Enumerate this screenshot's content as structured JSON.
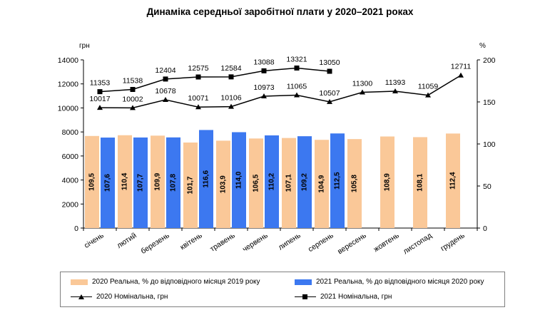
{
  "chart_data": {
    "type": "bar+line",
    "title": "Динаміка середньої заробітної плати у 2020–2021 роках",
    "y_left_label": "грн",
    "y_right_label": "%",
    "y_left_lim": [
      0,
      14000
    ],
    "y_right_lim": [
      0,
      200
    ],
    "y_left_ticks": [
      "0",
      "2000",
      "4000",
      "6000",
      "8000",
      "10000",
      "12000",
      "14000"
    ],
    "y_right_ticks": [
      "0",
      "50",
      "100",
      "150",
      "200"
    ],
    "categories": [
      "січень",
      "лютий",
      "березень",
      "квітень",
      "травень",
      "червень",
      "липень",
      "серпень",
      "вересень",
      "жовтень",
      "листопад",
      "грудень"
    ],
    "series": [
      {
        "name": "2020 Реальна, % до відповідного місяця 2019 року",
        "kind": "bar",
        "axis": "right",
        "color": "#FAC898",
        "values": [
          109.5,
          110.4,
          109.9,
          101.7,
          103.9,
          106.5,
          107.1,
          104.9,
          105.8,
          108.9,
          108.1,
          112.4
        ],
        "labels": [
          "109,5",
          "110,4",
          "109,9",
          "101,7",
          "103,9",
          "106,5",
          "107,1",
          "104,9",
          "105,8",
          "108,9",
          "108,1",
          "112,4"
        ]
      },
      {
        "name": "2021 Реальна, % до відповідного місяця 2020 року",
        "kind": "bar",
        "axis": "right",
        "color": "#3C78F0",
        "values": [
          107.6,
          107.7,
          107.8,
          116.6,
          114.0,
          110.2,
          109.2,
          112.5,
          null,
          null,
          null,
          null
        ],
        "labels": [
          "107,6",
          "107,7",
          "107,8",
          "116,6",
          "114,0",
          "110,2",
          "109,2",
          "112,5",
          null,
          null,
          null,
          null
        ]
      },
      {
        "name": "2020 Номінальна, грн",
        "kind": "line",
        "marker": "triangle",
        "axis": "left",
        "color": "#000000",
        "values": [
          10017,
          10002,
          10678,
          10071,
          10106,
          10973,
          11065,
          10507,
          11300,
          11393,
          11059,
          12711
        ],
        "labels": [
          "10017",
          "10002",
          "10678",
          "10071",
          "10106",
          "10973",
          "11065",
          "10507",
          "11300",
          "11393",
          "11059",
          "12711"
        ]
      },
      {
        "name": "2021 Номінальна, грн",
        "kind": "line",
        "marker": "square",
        "axis": "left",
        "color": "#000000",
        "values": [
          11353,
          11538,
          12404,
          12575,
          12584,
          13088,
          13321,
          13050,
          null,
          null,
          null,
          null
        ],
        "labels": [
          "11353",
          "11538",
          "12404",
          "12575",
          "12584",
          "13088",
          "13321",
          "13050",
          null,
          null,
          null,
          null
        ]
      }
    ],
    "legend": {
      "placement": "bottom",
      "entries": [
        "2020 Реальна, % до відповідного місяця 2019 року",
        "2021 Реальна, % до відповідного місяця 2020 року",
        "2020 Номінальна, грн",
        "2021 Номінальна, грн"
      ]
    }
  }
}
